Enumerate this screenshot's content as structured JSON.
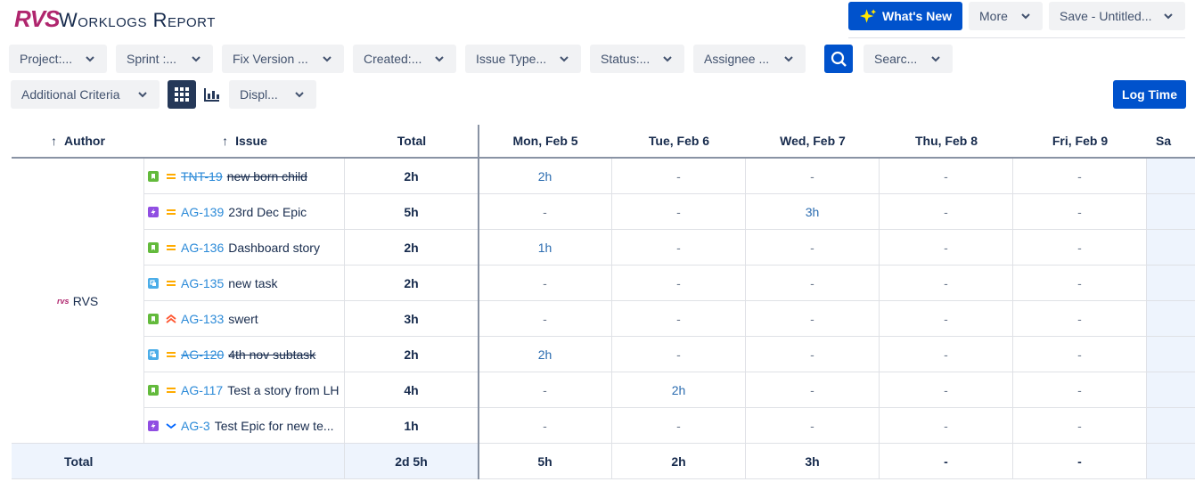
{
  "header": {
    "logo": "RVS",
    "title": "Worklogs Report",
    "buttons": [
      "What's New",
      "More",
      "Save - Untitled..."
    ]
  },
  "filters": [
    "Project:...",
    "Sprint :...",
    "Fix Version ...",
    "Created:...",
    "Issue Type...",
    "Status:...",
    "Assignee ...",
    "Searc..."
  ],
  "toolbar": {
    "additional": "Additional Criteria",
    "display": "Displ...",
    "log_time": "Log Time"
  },
  "table": {
    "columns": [
      "Author",
      "Issue",
      "Total",
      "Mon, Feb 5",
      "Tue, Feb 6",
      "Wed, Feb 7",
      "Thu, Feb 8",
      "Fri, Feb 9",
      "Sa"
    ],
    "author": "RVS",
    "rows": [
      {
        "key": "TNT-19",
        "summary": "new born child",
        "icon": "story",
        "priority": "medium",
        "done": true,
        "total": "2h",
        "days": [
          "2h",
          "-",
          "-",
          "-",
          "-"
        ]
      },
      {
        "key": "AG-139",
        "summary": "23rd Dec Epic",
        "icon": "epic",
        "priority": "medium",
        "done": false,
        "total": "5h",
        "days": [
          "-",
          "-",
          "3h",
          "-",
          "-"
        ]
      },
      {
        "key": "AG-136",
        "summary": "Dashboard story",
        "icon": "story",
        "priority": "medium",
        "done": false,
        "total": "2h",
        "days": [
          "1h",
          "-",
          "-",
          "-",
          "-"
        ]
      },
      {
        "key": "AG-135",
        "summary": "new task",
        "icon": "subtask",
        "priority": "medium",
        "done": false,
        "total": "2h",
        "days": [
          "-",
          "-",
          "-",
          "-",
          "-"
        ]
      },
      {
        "key": "AG-133",
        "summary": "swert",
        "icon": "story",
        "priority": "high",
        "done": false,
        "total": "3h",
        "days": [
          "-",
          "-",
          "-",
          "-",
          "-"
        ]
      },
      {
        "key": "AG-120",
        "summary": "4th nov subtask",
        "icon": "subtask",
        "priority": "medium",
        "done": true,
        "total": "2h",
        "days": [
          "2h",
          "-",
          "-",
          "-",
          "-"
        ]
      },
      {
        "key": "AG-117",
        "summary": "Test a story from LH",
        "icon": "story",
        "priority": "medium",
        "done": false,
        "total": "4h",
        "days": [
          "-",
          "2h",
          "-",
          "-",
          "-"
        ]
      },
      {
        "key": "AG-3",
        "summary": "Test Epic for new te...",
        "icon": "epic",
        "priority": "low",
        "done": false,
        "total": "1h",
        "days": [
          "-",
          "-",
          "-",
          "-",
          "-"
        ]
      }
    ],
    "footer": {
      "label": "Total",
      "total": "2d 5h",
      "days": [
        "5h",
        "2h",
        "3h",
        "-",
        "-"
      ]
    }
  }
}
